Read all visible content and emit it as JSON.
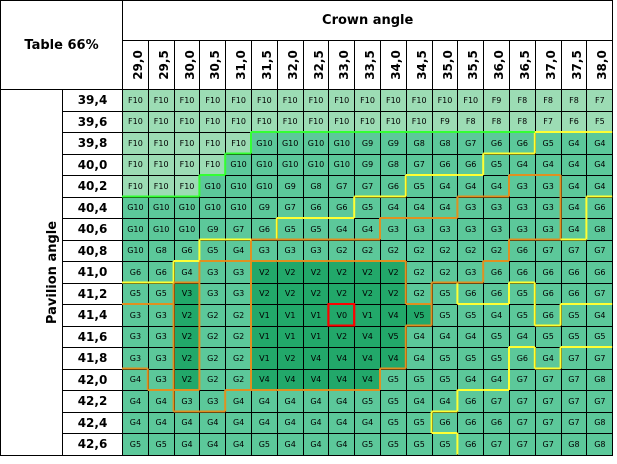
{
  "table_label": "Table 66%",
  "crown_title": "Crown angle",
  "pavilion_title": "Pavilion angle",
  "crown_angles": [
    "29,0",
    "29,5",
    "30,0",
    "30,5",
    "31,0",
    "31,5",
    "32,0",
    "32,5",
    "33,0",
    "33,5",
    "34,0",
    "34,5",
    "35,0",
    "35,5",
    "36,0",
    "36,5",
    "37,0",
    "37,5",
    "38,0"
  ],
  "rows": [
    {
      "angle": "39,4",
      "cells": [
        "F10",
        "F10",
        "F10",
        "F10",
        "F10",
        "F10",
        "F10",
        "F10",
        "F10",
        "F10",
        "F10",
        "F10",
        "F10",
        "F10",
        "F9",
        "F8",
        "F8",
        "F8",
        "F7"
      ]
    },
    {
      "angle": "39,6",
      "cells": [
        "F10",
        "F10",
        "F10",
        "F10",
        "F10",
        "F10",
        "F10",
        "F10",
        "F10",
        "F10",
        "F10",
        "F10",
        "F9",
        "F8",
        "F8",
        "F8",
        "F7",
        "F6",
        "F5"
      ]
    },
    {
      "angle": "39,8",
      "cells": [
        "F10",
        "F10",
        "F10",
        "F10",
        "F10",
        "G10",
        "G10",
        "G10",
        "G10",
        "G9",
        "G9",
        "G8",
        "G8",
        "G7",
        "G6",
        "G6",
        "G5",
        "G4",
        "G4"
      ]
    },
    {
      "angle": "40,0",
      "cells": [
        "F10",
        "F10",
        "F10",
        "F10",
        "G10",
        "G10",
        "G10",
        "G10",
        "G10",
        "G9",
        "G8",
        "G7",
        "G6",
        "G6",
        "G5",
        "G4",
        "G4",
        "G4",
        "G4"
      ]
    },
    {
      "angle": "40,2",
      "cells": [
        "F10",
        "F10",
        "F10",
        "G10",
        "G10",
        "G10",
        "G9",
        "G8",
        "G7",
        "G7",
        "G6",
        "G5",
        "G4",
        "G4",
        "G4",
        "G3",
        "G3",
        "G4",
        "G4"
      ]
    },
    {
      "angle": "40,4",
      "cells": [
        "G10",
        "G10",
        "G10",
        "G10",
        "G10",
        "G9",
        "G7",
        "G6",
        "G6",
        "G5",
        "G4",
        "G4",
        "G4",
        "G3",
        "G3",
        "G3",
        "G3",
        "G4",
        "G6"
      ]
    },
    {
      "angle": "40,6",
      "cells": [
        "G10",
        "G10",
        "G10",
        "G9",
        "G7",
        "G6",
        "G5",
        "G5",
        "G4",
        "G4",
        "G3",
        "G3",
        "G3",
        "G3",
        "G3",
        "G3",
        "G3",
        "G4",
        "G8"
      ]
    },
    {
      "angle": "40,8",
      "cells": [
        "G10",
        "G8",
        "G6",
        "G5",
        "G4",
        "G3",
        "G3",
        "G3",
        "G2",
        "G2",
        "G2",
        "G2",
        "G2",
        "G2",
        "G2",
        "G6",
        "G7",
        "G7",
        "G7"
      ]
    },
    {
      "angle": "41,0",
      "cells": [
        "G6",
        "G6",
        "G4",
        "G3",
        "G3",
        "V2",
        "V2",
        "V2",
        "V2",
        "V2",
        "V2",
        "G2",
        "G2",
        "G3",
        "G6",
        "G6",
        "G6",
        "G6",
        "G6"
      ]
    },
    {
      "angle": "41,2",
      "cells": [
        "G5",
        "G5",
        "V3",
        "G3",
        "G3",
        "V2",
        "V2",
        "V2",
        "V2",
        "V2",
        "V2",
        "G2",
        "G5",
        "G6",
        "G6",
        "G5",
        "G6",
        "G6",
        "G7"
      ]
    },
    {
      "angle": "41,4",
      "cells": [
        "G3",
        "G3",
        "V2",
        "G2",
        "G2",
        "V1",
        "V1",
        "V1",
        "V0",
        "V1",
        "V4",
        "V5",
        "G5",
        "G5",
        "G4",
        "G5",
        "G6",
        "G5",
        "G4"
      ]
    },
    {
      "angle": "41,6",
      "cells": [
        "G3",
        "G3",
        "V2",
        "G2",
        "G2",
        "V1",
        "V1",
        "V1",
        "V2",
        "V4",
        "V5",
        "G4",
        "G4",
        "G4",
        "G5",
        "G4",
        "G5",
        "G5",
        "G5"
      ]
    },
    {
      "angle": "41,8",
      "cells": [
        "G3",
        "G3",
        "V2",
        "G2",
        "G2",
        "V1",
        "V2",
        "V4",
        "V4",
        "V4",
        "V4",
        "G4",
        "G5",
        "G5",
        "G5",
        "G6",
        "G4",
        "G7",
        "G7"
      ]
    },
    {
      "angle": "42,0",
      "cells": [
        "G4",
        "G3",
        "V2",
        "G2",
        "G2",
        "V4",
        "V4",
        "V4",
        "V4",
        "V4",
        "G5",
        "G5",
        "G5",
        "G4",
        "G4",
        "G7",
        "G7",
        "G7",
        "G8"
      ]
    },
    {
      "angle": "42,2",
      "cells": [
        "G4",
        "G4",
        "G3",
        "G3",
        "G4",
        "G4",
        "G4",
        "G4",
        "G4",
        "G5",
        "G5",
        "G4",
        "G4",
        "G6",
        "G7",
        "G7",
        "G7",
        "G7",
        "G7"
      ]
    },
    {
      "angle": "42,4",
      "cells": [
        "G4",
        "G4",
        "G4",
        "G4",
        "G4",
        "G4",
        "G4",
        "G4",
        "G4",
        "G4",
        "G5",
        "G5",
        "G6",
        "G6",
        "G6",
        "G7",
        "G7",
        "G7",
        "G8"
      ]
    },
    {
      "angle": "42,6",
      "cells": [
        "G5",
        "G5",
        "G4",
        "G4",
        "G4",
        "G5",
        "G4",
        "G4",
        "G4",
        "G5",
        "G5",
        "G5",
        "G5",
        "G6",
        "G7",
        "G7",
        "G7",
        "G8",
        "G8"
      ]
    }
  ],
  "colors": {
    "grade_F": "#9cdcb4",
    "grade_G": "#5cc89a",
    "grade_V": "#22a86a",
    "outline_lime": "#33ff33",
    "outline_yellow": "#ffff33",
    "outline_orange": "#e09020",
    "outline_red": "#ff0000"
  }
}
